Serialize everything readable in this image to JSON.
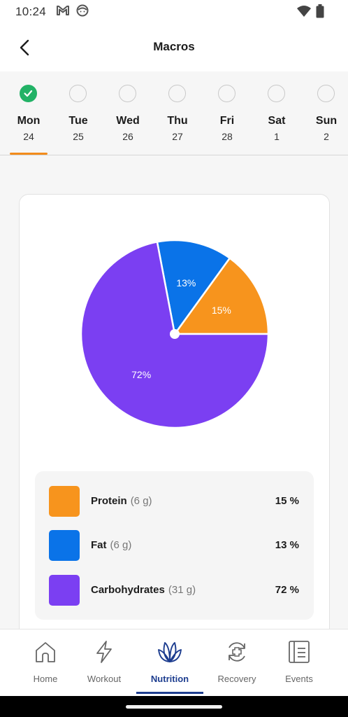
{
  "status_bar": {
    "time": "10:24"
  },
  "header": {
    "title": "Macros"
  },
  "week": {
    "days": [
      {
        "name": "Mon",
        "date": "24",
        "completed": true,
        "selected": true
      },
      {
        "name": "Tue",
        "date": "25",
        "completed": false,
        "selected": false
      },
      {
        "name": "Wed",
        "date": "26",
        "completed": false,
        "selected": false
      },
      {
        "name": "Thu",
        "date": "27",
        "completed": false,
        "selected": false
      },
      {
        "name": "Fri",
        "date": "28",
        "completed": false,
        "selected": false
      },
      {
        "name": "Sat",
        "date": "1",
        "completed": false,
        "selected": false
      },
      {
        "name": "Sun",
        "date": "2",
        "completed": false,
        "selected": false
      }
    ]
  },
  "macros": {
    "items": [
      {
        "name": "Protein",
        "grams": "(6 g)",
        "percent": "15 %",
        "pie_label": "15%",
        "value": 15,
        "color": "#f7941d"
      },
      {
        "name": "Fat",
        "grams": "(6 g)",
        "percent": "13 %",
        "pie_label": "13%",
        "value": 13,
        "color": "#0a73e8"
      },
      {
        "name": "Carbohydrates",
        "grams": "(31 g)",
        "percent": "72 %",
        "pie_label": "72%",
        "value": 72,
        "color": "#7b3ff2"
      }
    ]
  },
  "chart_data": {
    "type": "pie",
    "categories": [
      "Protein",
      "Fat",
      "Carbohydrates"
    ],
    "values": [
      15,
      13,
      72
    ]
  },
  "nav": {
    "items": [
      {
        "label": "Home",
        "icon": "home-icon"
      },
      {
        "label": "Workout",
        "icon": "lightning-icon"
      },
      {
        "label": "Nutrition",
        "icon": "leaf-icon",
        "active": true
      },
      {
        "label": "Recovery",
        "icon": "recovery-icon"
      },
      {
        "label": "Events",
        "icon": "events-icon"
      }
    ]
  }
}
